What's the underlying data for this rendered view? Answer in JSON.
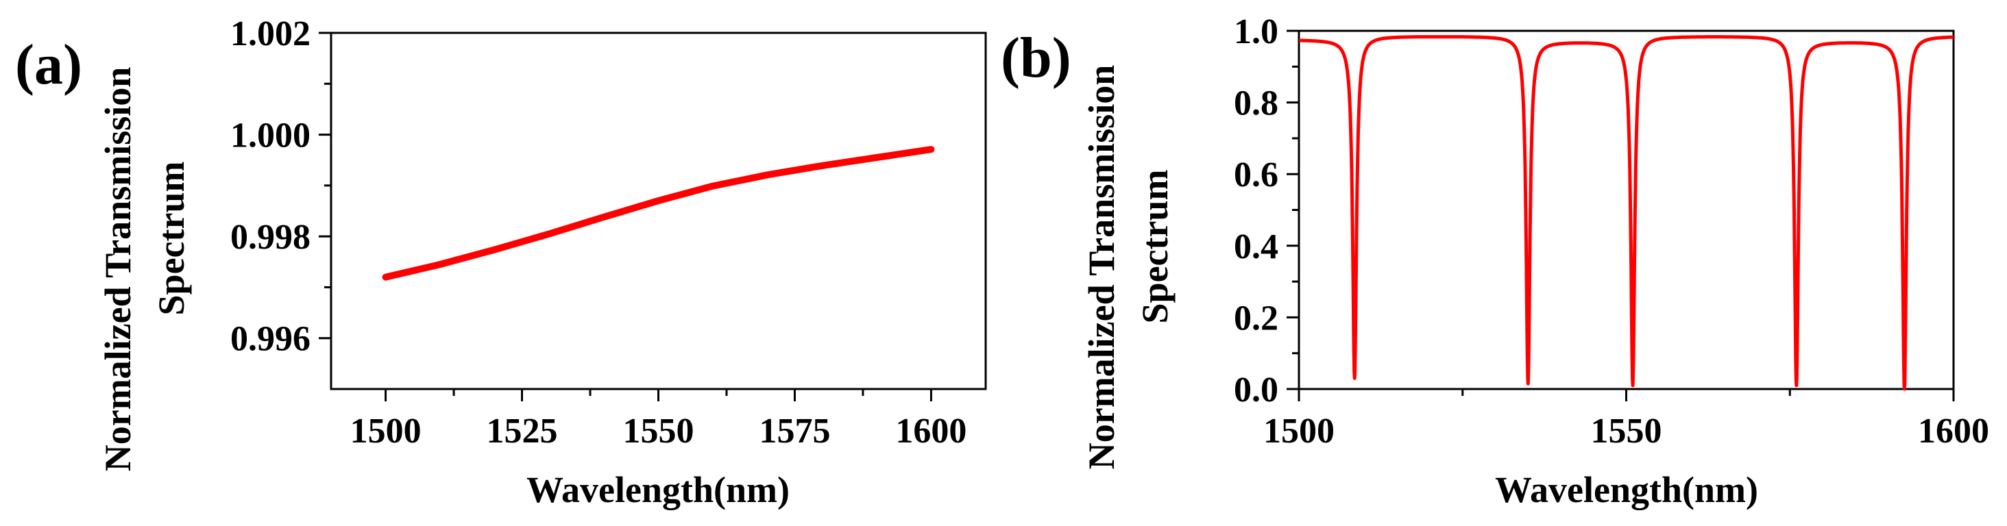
{
  "chart_data": [
    {
      "type": "line",
      "panel_label": "(a)",
      "xlabel": "Wavelength(nm)",
      "ylabel_lines": [
        "Normalized Transmission",
        "Spectrum"
      ],
      "xlim": [
        1490,
        1610
      ],
      "ylim": [
        0.995,
        1.002
      ],
      "xticks": [
        1500,
        1525,
        1550,
        1575,
        1600
      ],
      "xtick_labels": [
        "1500",
        "1525",
        "1550",
        "1575",
        "1600"
      ],
      "yticks": [
        0.996,
        0.998,
        1.0,
        1.002
      ],
      "ytick_labels": [
        "0.996",
        "0.998",
        "1.000",
        "1.002"
      ],
      "color": "#ff0000",
      "series": [
        {
          "name": "transmission",
          "x": [
            1500,
            1510,
            1520,
            1530,
            1540,
            1550,
            1560,
            1570,
            1580,
            1590,
            1600
          ],
          "y": [
            0.9972,
            0.99745,
            0.99774,
            0.99805,
            0.99838,
            0.9987,
            0.99899,
            0.99921,
            0.99939,
            0.99955,
            0.99971
          ]
        }
      ]
    },
    {
      "type": "line",
      "panel_label": "(b)",
      "xlabel": "Wavelength(nm)",
      "ylabel_lines": [
        "Normalized Transmission",
        "Spectrum"
      ],
      "xlim": [
        1500,
        1600
      ],
      "ylim": [
        0.0,
        1.0
      ],
      "xticks": [
        1500,
        1550,
        1600
      ],
      "xtick_labels": [
        "1500",
        "1550",
        "1600"
      ],
      "yticks": [
        0.0,
        0.2,
        0.4,
        0.6,
        0.8,
        1.0
      ],
      "ytick_labels": [
        "0.0",
        "0.2",
        "0.4",
        "0.6",
        "0.8",
        "1.0"
      ],
      "color": "#ff0000",
      "series": [
        {
          "name": "transmission",
          "baseline_segments": [
            {
              "x_start": 1500,
              "x_end": 1508.5,
              "level": 0.975
            },
            {
              "x_start": 1508.5,
              "x_end": 1535,
              "level": 0.985
            },
            {
              "x_start": 1535,
              "x_end": 1551,
              "level": 0.97
            },
            {
              "x_start": 1551,
              "x_end": 1576,
              "level": 0.985
            },
            {
              "x_start": 1576,
              "x_end": 1592.5,
              "level": 0.97
            },
            {
              "x_start": 1592.5,
              "x_end": 1600,
              "level": 0.985
            }
          ],
          "dips": [
            {
              "center": 1508.5,
              "min": 0.03
            },
            {
              "center": 1535.0,
              "min": 0.015
            },
            {
              "center": 1551.0,
              "min": 0.01
            },
            {
              "center": 1576.0,
              "min": 0.01
            },
            {
              "center": 1592.5,
              "min": 0.0
            }
          ]
        }
      ]
    }
  ]
}
